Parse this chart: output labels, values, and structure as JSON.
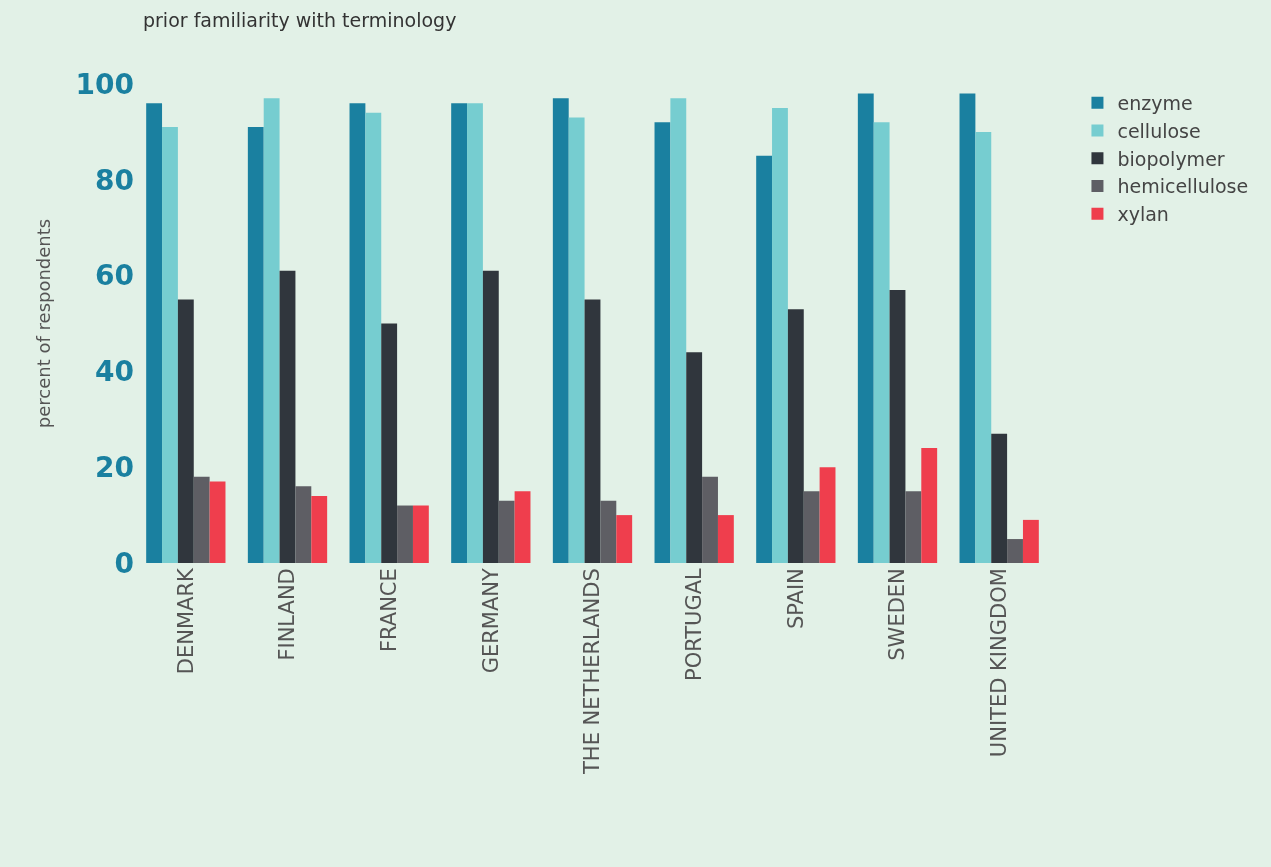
{
  "chart_data": {
    "type": "bar",
    "title": "prior familiarity with terminology",
    "ylabel": "percent of respondents",
    "categories": [
      "DENMARK",
      "FINLAND",
      "FRANCE",
      "GERMANY",
      "THE NETHERLANDS",
      "PORTUGAL",
      "SPAIN",
      "SWEDEN",
      "UNITED KINGDOM"
    ],
    "series": [
      {
        "name": "enzyme",
        "color": "#1a80a0",
        "values": [
          96,
          91,
          96,
          96,
          97,
          92,
          85,
          98,
          98
        ]
      },
      {
        "name": "cellulose",
        "color": "#76cdd0",
        "values": [
          91,
          97,
          94,
          96,
          93,
          97,
          95,
          92,
          90
        ]
      },
      {
        "name": "biopolymer",
        "color": "#30363d",
        "values": [
          55,
          61,
          50,
          61,
          55,
          44,
          53,
          57,
          27
        ]
      },
      {
        "name": "hemicellulose",
        "color": "#5e5e64",
        "values": [
          18,
          16,
          12,
          13,
          13,
          18,
          15,
          15,
          5
        ]
      },
      {
        "name": "xylan",
        "color": "#ef3e4d",
        "values": [
          17,
          14,
          12,
          15,
          10,
          10,
          20,
          24,
          9
        ]
      }
    ],
    "ylim": [
      0,
      100
    ],
    "yticks": [
      0,
      20,
      40,
      60,
      80,
      100
    ],
    "grid": false,
    "legend": "top right"
  }
}
